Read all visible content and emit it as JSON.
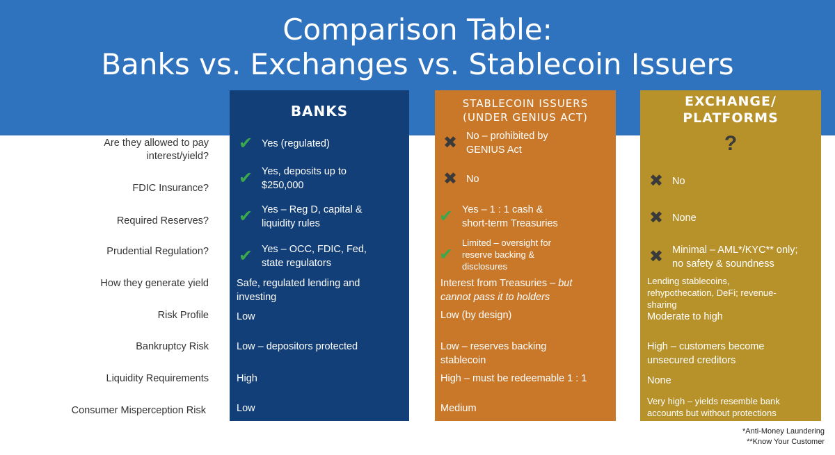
{
  "title": {
    "line1": "Comparison Table:",
    "line2": "Banks vs. Exchanges vs. Stablecoin Issuers"
  },
  "columns": {
    "banks": "BANKS",
    "stable_line1": "STABLECOIN ISSUERS",
    "stable_line2": "(UNDER GENIUS ACT)",
    "exch_line1": "EXCHANGE/",
    "exch_line2": "PLATFORMS",
    "exch_question": "?"
  },
  "colors": {
    "banner": "#2f72bd",
    "banks": "#123f78",
    "stablecoin": "#c9782a",
    "exchange": "#b7922b",
    "check": "#3aa84d"
  },
  "rows": [
    {
      "label_line1": "Are they allowed to pay",
      "label_line2": "interest/yield?",
      "banks": {
        "icon": "check-icon",
        "text": "Yes (regulated)"
      },
      "stable": {
        "icon": "cross-icon",
        "text_line1": "No – prohibited by",
        "text_line2": "GENIUS Act"
      },
      "exch": {
        "icon": "",
        "text": ""
      }
    },
    {
      "label": "FDIC Insurance?",
      "banks": {
        "icon": "check-icon",
        "text_line1": "Yes, deposits up to",
        "text_line2": "$250,000"
      },
      "stable": {
        "icon": "cross-icon",
        "text": "No"
      },
      "exch": {
        "icon": "cross-icon",
        "text": "No"
      }
    },
    {
      "label": "Required Reserves?",
      "banks": {
        "icon": "check-icon",
        "text_line1": "Yes – Reg D, capital &",
        "text_line2": "liquidity rules"
      },
      "stable": {
        "icon": "check-icon",
        "text_line1": "Yes – 1 : 1 cash &",
        "text_line2": "short-term Treasuries"
      },
      "exch": {
        "icon": "cross-icon",
        "text": "None"
      }
    },
    {
      "label": "Prudential Regulation?",
      "banks": {
        "icon": "check-icon",
        "text_line1": "Yes – OCC, FDIC, Fed,",
        "text_line2": "state regulators"
      },
      "stable": {
        "icon": "check-icon",
        "text_line1": "Limited – oversight for",
        "text_line2": "reserve backing &",
        "text_line3": "disclosures"
      },
      "exch": {
        "icon": "cross-icon",
        "text_line1": "Minimal – AML*/KYC** only;",
        "text_line2": "no safety & soundness"
      }
    },
    {
      "label": "How they generate yield",
      "banks": {
        "text_line1": "Safe, regulated lending and",
        "text_line2": "investing"
      },
      "stable": {
        "text_line1": "Interest from Treasuries – ",
        "text_line1_italic": "but",
        "text_line2": "cannot pass it to holders"
      },
      "exch": {
        "text_line1": "Lending stablecoins,",
        "text_line2": "rehypothecation, DeFi; revenue-",
        "text_line3": "sharing"
      }
    },
    {
      "label": "Risk Profile",
      "banks": {
        "text": "Low"
      },
      "stable": {
        "text": "Low (by design)"
      },
      "exch": {
        "text": "Moderate to high"
      }
    },
    {
      "label": "Bankruptcy Risk",
      "banks": {
        "text": "Low – depositors protected"
      },
      "stable": {
        "text_line1": "Low – reserves backing",
        "text_line2": "stablecoin"
      },
      "exch": {
        "text_line1": "High – customers become",
        "text_line2": "unsecured creditors"
      }
    },
    {
      "label": "Liquidity Requirements",
      "banks": {
        "text": "High"
      },
      "stable": {
        "text": "High – must be redeemable 1 : 1"
      },
      "exch": {
        "text": "None"
      }
    },
    {
      "label": "Consumer Misperception Risk",
      "banks": {
        "text": "Low"
      },
      "stable": {
        "text": "Medium"
      },
      "exch": {
        "text_line1": "Very high – yields resemble bank",
        "text_line2": "accounts but without protections"
      }
    }
  ],
  "footnotes": {
    "aml": "*Anti-Money Laundering",
    "kyc": "**Know Your Customer"
  }
}
